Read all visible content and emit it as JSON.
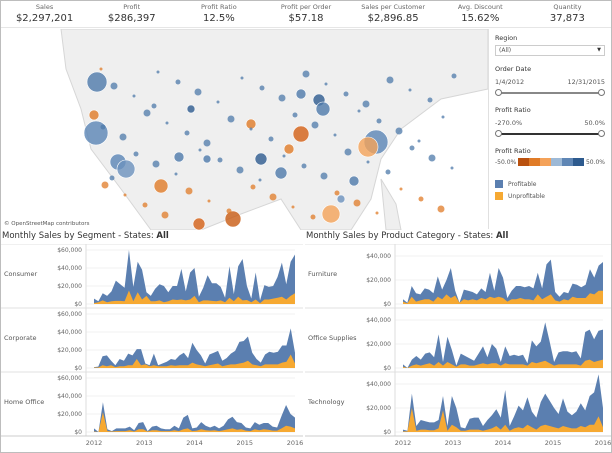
{
  "kpis": [
    {
      "label": "Sales",
      "value": "$2,297,201"
    },
    {
      "label": "Profit",
      "value": "$286,397"
    },
    {
      "label": "Profit Ratio",
      "value": "12.5%"
    },
    {
      "label": "Profit per Order",
      "value": "$57.18"
    },
    {
      "label": "Sales per Customer",
      "value": "$2,896.85"
    },
    {
      "label": "Avg. Discount",
      "value": "15.62%"
    },
    {
      "label": "Quantity",
      "value": "37,873"
    }
  ],
  "map": {
    "attribution": "© OpenStreetMap contributors"
  },
  "filters": {
    "region_label": "Region",
    "region_value": "(All)",
    "order_date_label": "Order Date",
    "order_date_min": "1/4/2012",
    "order_date_max": "12/31/2015",
    "profit_ratio_label": "Profit Ratio",
    "profit_ratio_min": "-270.0%",
    "profit_ratio_max": "50.0%"
  },
  "legend": {
    "gradient_label": "Profit Ratio",
    "gradient_min": "-50.0%",
    "gradient_max": "50.0%",
    "gradient_colors": [
      "#b9510f",
      "#e07b27",
      "#f4a259",
      "#9db9d6",
      "#5f86b5",
      "#2d5a8e"
    ],
    "items": [
      {
        "label": "Profitable",
        "color": "#5b7fb0"
      },
      {
        "label": "Unprofitable",
        "color": "#f6a932"
      }
    ]
  },
  "left_title": {
    "prefix": "Monthly Sales by Segment - States: ",
    "value": "All"
  },
  "right_title": {
    "prefix": "Monthly Sales by Product Category - States: ",
    "value": "All"
  },
  "chart_data": [
    {
      "type": "area",
      "title": "Monthly Sales by Segment - States: All",
      "x_ticks": [
        "2012",
        "2013",
        "2014",
        "2015",
        "2016"
      ],
      "y_ticks": [
        "$0",
        "$20,000",
        "$40,000",
        "$60,000"
      ],
      "ylim": [
        0,
        60000
      ],
      "rows": [
        {
          "name": "Consumer",
          "profitable": [
            6000,
            3000,
            12000,
            9000,
            14000,
            26000,
            22000,
            18000,
            60000,
            19000,
            47000,
            38000,
            13000,
            9000,
            17000,
            22000,
            20000,
            13000,
            20000,
            20000,
            39000,
            14000,
            35000,
            40000,
            8000,
            18000,
            32000,
            23000,
            23000,
            19000,
            7000,
            42000,
            11000,
            42000,
            50000,
            20000,
            6000,
            35000,
            4000,
            21000,
            19000,
            20000,
            30000,
            46000,
            22000,
            47000,
            55000
          ],
          "unprofitable": [
            1000,
            2000,
            4000,
            2000,
            3000,
            3500,
            3500,
            3000,
            15000,
            3000,
            13000,
            5000,
            9000,
            3000,
            3000,
            4000,
            2000,
            3000,
            5000,
            4500,
            5000,
            4000,
            5000,
            9000,
            2000,
            4000,
            4000,
            3500,
            3000,
            4000,
            2000,
            7000,
            3000,
            8000,
            4000,
            4500,
            2000,
            5000,
            1000,
            5000,
            5000,
            6000,
            7000,
            8000,
            5000,
            9000,
            12000
          ]
        },
        {
          "name": "Corporate",
          "profitable": [
            1000,
            1500,
            13000,
            14000,
            8000,
            3000,
            10000,
            8000,
            16000,
            14000,
            21000,
            21000,
            5000,
            3000,
            16000,
            3000,
            5000,
            7000,
            10000,
            9000,
            14000,
            17000,
            11000,
            28000,
            20000,
            14000,
            5000,
            15000,
            17000,
            19000,
            8000,
            11000,
            16000,
            19000,
            29000,
            30000,
            35000,
            17000,
            10000,
            6000,
            15000,
            18000,
            17000,
            18000,
            25000,
            25000,
            44000,
            17000
          ],
          "unprofitable": [
            500,
            500,
            3000,
            2000,
            3000,
            1000,
            2000,
            2000,
            3000,
            3000,
            10000,
            3000,
            4000,
            2000,
            3000,
            2000,
            2000,
            2000,
            3000,
            2500,
            3000,
            3000,
            3000,
            6000,
            4000,
            3000,
            2000,
            3000,
            4000,
            5000,
            2000,
            3000,
            4000,
            4000,
            5000,
            6000,
            8000,
            4000,
            3000,
            2000,
            4000,
            4000,
            4000,
            4000,
            6000,
            7000,
            15000,
            5000
          ]
        },
        {
          "name": "Home Office",
          "profitable": [
            4000,
            0,
            33000,
            3000,
            1000,
            4000,
            4000,
            4000,
            6000,
            2000,
            10000,
            11000,
            1000,
            6000,
            7000,
            4000,
            3000,
            3000,
            7000,
            4000,
            16000,
            19000,
            4000,
            5000,
            11000,
            7000,
            5000,
            7000,
            4000,
            7000,
            14000,
            17000,
            11000,
            10000,
            5000,
            4000,
            11000,
            8000,
            10000,
            10000,
            6000,
            5000,
            18000,
            30000,
            20000,
            16000
          ],
          "unprofitable": [
            500,
            0,
            22000,
            1000,
            500,
            1000,
            1000,
            1000,
            2000,
            500,
            3000,
            3000,
            500,
            2000,
            2000,
            1000,
            1000,
            1000,
            2000,
            1000,
            3000,
            4000,
            1000,
            1500,
            3000,
            2000,
            1500,
            2000,
            1000,
            2000,
            3000,
            4000,
            2500,
            3000,
            1500,
            1000,
            3000,
            2000,
            3000,
            2500,
            1500,
            1500,
            4000,
            7000,
            6000,
            4000
          ]
        }
      ]
    },
    {
      "type": "area",
      "title": "Monthly Sales by Product Category - States: All",
      "x_ticks": [
        "2012",
        "2013",
        "2014",
        "2015",
        "2016"
      ],
      "y_ticks": [
        "$0",
        "$20,000",
        "$40,000"
      ],
      "ylim": [
        0,
        45000
      ],
      "rows": [
        {
          "name": "Furniture",
          "profitable": [
            4000,
            1000,
            15000,
            9000,
            8000,
            13000,
            12000,
            9000,
            23000,
            12000,
            20000,
            30000,
            11000,
            1000,
            12000,
            11000,
            10000,
            8000,
            13000,
            10000,
            26000,
            11000,
            30000,
            22000,
            5000,
            11000,
            15000,
            15000,
            14000,
            15000,
            13000,
            26000,
            13000,
            33000,
            37000,
            10000,
            6000,
            10000,
            9000,
            17000,
            16000,
            14000,
            16000,
            29000,
            22000,
            32000,
            35000
          ],
          "unprofitable": [
            2000,
            500,
            6000,
            2000,
            3000,
            4000,
            4000,
            2000,
            6000,
            4000,
            8000,
            5000,
            7000,
            1000,
            4000,
            3000,
            4000,
            3000,
            5000,
            4000,
            6000,
            5000,
            6000,
            5000,
            2000,
            4000,
            4000,
            5000,
            4000,
            4000,
            3000,
            8000,
            4000,
            6000,
            8000,
            3000,
            2000,
            4000,
            3000,
            6000,
            5000,
            5000,
            5000,
            9000,
            8000,
            11000,
            11000
          ]
        },
        {
          "name": "Office Supplies",
          "profitable": [
            3000,
            0,
            7000,
            10000,
            7000,
            12000,
            13000,
            9000,
            28000,
            5000,
            26000,
            15000,
            2000,
            12000,
            10000,
            8000,
            6000,
            12000,
            18000,
            9000,
            20000,
            16000,
            5000,
            18000,
            10000,
            11000,
            10000,
            11000,
            4000,
            23000,
            18000,
            22000,
            38000,
            22000,
            5000,
            13000,
            14000,
            14000,
            13000,
            14000,
            8000,
            30000,
            32000,
            24000,
            31000,
            32000
          ],
          "unprofitable": [
            1000,
            0,
            2000,
            3000,
            2000,
            3000,
            4000,
            2000,
            5000,
            2000,
            5000,
            3000,
            1000,
            3000,
            3000,
            2000,
            2000,
            3000,
            4000,
            3000,
            4000,
            4000,
            2000,
            4000,
            3000,
            3000,
            3000,
            3000,
            2000,
            5000,
            4000,
            5000,
            6000,
            4000,
            2000,
            3000,
            3000,
            3000,
            3000,
            3000,
            2000,
            6000,
            7000,
            5000,
            6000,
            7000
          ]
        },
        {
          "name": "Technology",
          "profitable": [
            2000,
            1000,
            32000,
            5000,
            10000,
            9000,
            8000,
            8000,
            10000,
            30000,
            5000,
            30000,
            20000,
            4000,
            3000,
            11000,
            12000,
            12000,
            5000,
            10000,
            14000,
            19000,
            12000,
            35000,
            5000,
            13000,
            22000,
            18000,
            29000,
            17000,
            12000,
            25000,
            32000,
            26000,
            20000,
            15000,
            28000,
            17000,
            14000,
            17000,
            24000,
            18000,
            30000,
            33000,
            48000,
            20000
          ],
          "unprofitable": [
            500,
            500,
            20000,
            1000,
            2000,
            2000,
            1500,
            1500,
            3000,
            18000,
            1000,
            6000,
            4000,
            1000,
            1000,
            2000,
            2000,
            2000,
            1000,
            2000,
            3000,
            5000,
            2000,
            6000,
            1000,
            3000,
            4000,
            3000,
            6000,
            4000,
            2000,
            5000,
            6000,
            5000,
            4000,
            3000,
            5000,
            4000,
            3000,
            3000,
            5000,
            4000,
            6000,
            6000,
            13000,
            4000
          ]
        }
      ]
    }
  ]
}
